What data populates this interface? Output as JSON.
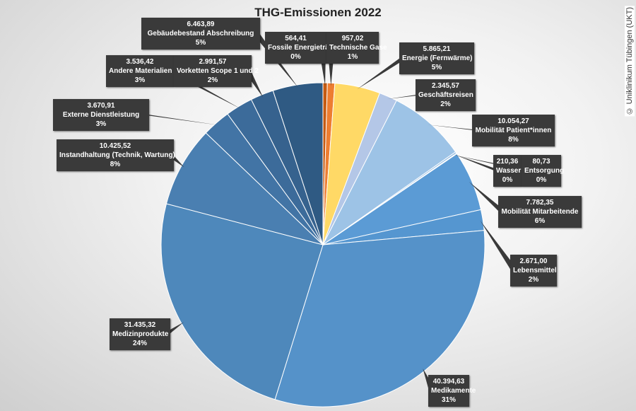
{
  "chart_data": {
    "type": "pie",
    "title": "THG-Emissionen 2022",
    "start": "top, clockwise",
    "slices": [
      {
        "label": "Fossile Energieträger",
        "value": 564.41,
        "display": "564,41",
        "pct": "0%",
        "color": "#c55a11"
      },
      {
        "label": "Technische Gase",
        "value": 957.02,
        "display": "957,02",
        "pct": "1%",
        "color": "#ed7d31"
      },
      {
        "label": "Energie (Fernwärme)",
        "value": 5865.21,
        "display": "5.865,21",
        "pct": "5%",
        "color": "#ffd966"
      },
      {
        "label": "Geschäftsreisen",
        "value": 2345.57,
        "display": "2.345,57",
        "pct": "2%",
        "color": "#b4c7e7"
      },
      {
        "label": "Mobilität Patient*innen",
        "value": 10054.27,
        "display": "10.054,27",
        "pct": "8%",
        "color": "#9dc3e6"
      },
      {
        "label": "Wasser",
        "value": 210.36,
        "display": "210,36",
        "pct": "0%",
        "color": "#8fb8e0"
      },
      {
        "label": "Entsorgung",
        "value": 80.73,
        "display": "80,73",
        "pct": "0%",
        "color": "#7aaedb"
      },
      {
        "label": "Mobilität Mitarbeitende",
        "value": 7782.35,
        "display": "7.782,35",
        "pct": "6%",
        "color": "#5b9bd5"
      },
      {
        "label": "Lebensmittel",
        "value": 2671.0,
        "display": "2.671,00",
        "pct": "2%",
        "color": "#5596d0"
      },
      {
        "label": "Medikamente",
        "value": 40394.63,
        "display": "40.394,63",
        "pct": "31%",
        "color": "#5592c9"
      },
      {
        "label": "Medizinprodukte",
        "value": 31435.32,
        "display": "31.435,32",
        "pct": "24%",
        "color": "#4e88bb"
      },
      {
        "label": "Instandhaltung (Technik, Wartung)",
        "value": 10425.52,
        "display": "10.425,52",
        "pct": "8%",
        "color": "#4a7fb1"
      },
      {
        "label": "Externe Dienstleistung",
        "value": 3670.91,
        "display": "3.670,91",
        "pct": "3%",
        "color": "#4274a5"
      },
      {
        "label": "Andere Materialien",
        "value": 3536.42,
        "display": "3.536,42",
        "pct": "3%",
        "color": "#3c6b9a"
      },
      {
        "label": "Vorketten Scope 1 und 2",
        "value": 2991.57,
        "display": "2.991,57",
        "pct": "2%",
        "color": "#36628e"
      },
      {
        "label": "Gebäudebestand Abschreibung",
        "value": 6463.89,
        "display": "6.463,89",
        "pct": "5%",
        "color": "#2f5a83"
      }
    ]
  },
  "copyright": "© Uniklinikum Tübingen (UKT)"
}
